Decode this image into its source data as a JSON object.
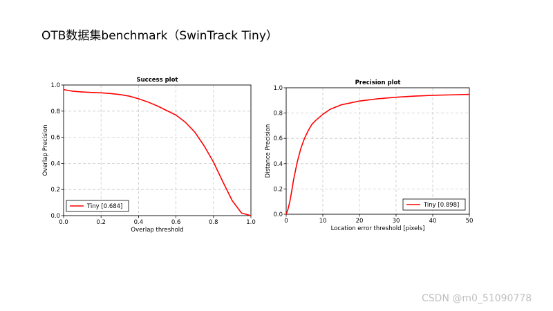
{
  "page": {
    "title": "OTB数据集benchmark（SwinTrack Tiny）",
    "watermark": "CSDN @m0_51090778"
  },
  "chart_data": [
    {
      "type": "line",
      "title": "Success plot",
      "xlabel": "Overlap threshold",
      "ylabel": "Overlap Precision",
      "xlim": [
        0,
        1
      ],
      "ylim": [
        0,
        1
      ],
      "xticks": [
        "0.0",
        "0.2",
        "0.4",
        "0.6",
        "0.8",
        "1.0"
      ],
      "yticks": [
        "0.0",
        "0.2",
        "0.4",
        "0.6",
        "0.8",
        "1.0"
      ],
      "grid": true,
      "legend_position": "lower-left",
      "series": [
        {
          "name": "Tiny [0.684]",
          "color": "#ff0000",
          "x": [
            0.0,
            0.05,
            0.1,
            0.15,
            0.2,
            0.25,
            0.3,
            0.35,
            0.4,
            0.45,
            0.5,
            0.55,
            0.6,
            0.65,
            0.7,
            0.75,
            0.8,
            0.85,
            0.9,
            0.95,
            1.0
          ],
          "y": [
            0.965,
            0.952,
            0.947,
            0.943,
            0.94,
            0.935,
            0.927,
            0.915,
            0.895,
            0.87,
            0.84,
            0.805,
            0.77,
            0.715,
            0.64,
            0.535,
            0.41,
            0.26,
            0.115,
            0.02,
            0.0
          ]
        }
      ]
    },
    {
      "type": "line",
      "title": "Precision plot",
      "xlabel": "Location error threshold [pixels]",
      "ylabel": "Distance Precision",
      "xlim": [
        0,
        50
      ],
      "ylim": [
        0,
        1
      ],
      "xticks": [
        "0",
        "10",
        "20",
        "30",
        "40",
        "50"
      ],
      "yticks": [
        "0.0",
        "0.2",
        "0.4",
        "0.6",
        "0.8",
        "1.0"
      ],
      "grid": true,
      "legend_position": "lower-right",
      "series": [
        {
          "name": "Tiny [0.898]",
          "color": "#ff0000",
          "x": [
            0,
            0.5,
            1,
            1.5,
            2,
            3,
            4,
            5,
            6,
            7,
            8,
            10,
            12,
            15,
            20,
            25,
            30,
            35,
            40,
            45,
            50
          ],
          "y": [
            0.0,
            0.04,
            0.1,
            0.18,
            0.27,
            0.41,
            0.52,
            0.6,
            0.66,
            0.71,
            0.74,
            0.79,
            0.83,
            0.865,
            0.895,
            0.913,
            0.925,
            0.934,
            0.94,
            0.944,
            0.948
          ]
        }
      ]
    }
  ]
}
